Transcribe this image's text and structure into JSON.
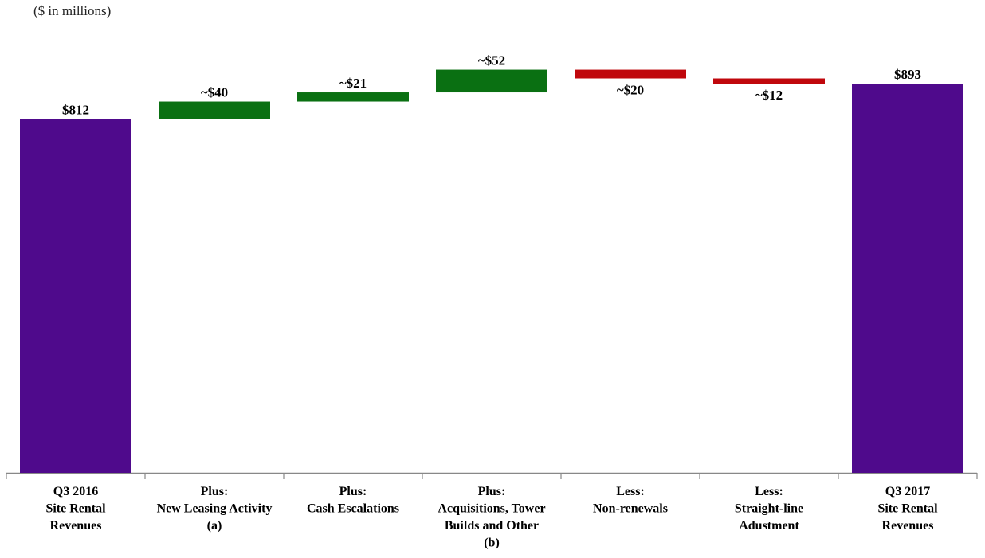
{
  "chart_data": {
    "type": "bar",
    "subtype": "waterfall",
    "units_note": "($ in millions)",
    "title": "",
    "xlabel": "",
    "ylabel": "",
    "ylim": [
      0,
      950
    ],
    "grid": false,
    "legend": "none",
    "colors": {
      "total": "#4F0A8C",
      "increase": "#0A7012",
      "decrease": "#C0070C",
      "axis": "#888888"
    },
    "categories": [
      [
        "Q3 2016",
        "Site Rental",
        "Revenues"
      ],
      [
        "Plus:",
        "New Leasing Activity",
        "(a)"
      ],
      [
        "Plus:",
        "Cash Escalations"
      ],
      [
        "Plus:",
        "Acquisitions, Tower",
        "Builds and Other",
        "(b)"
      ],
      [
        "Less:",
        "Non-renewals"
      ],
      [
        "Less:",
        "Straight-line",
        "Adustment"
      ],
      [
        "Q3 2017",
        "Site Rental",
        "Revenues"
      ]
    ],
    "steps": [
      {
        "kind": "total",
        "value": 812,
        "label": "$812"
      },
      {
        "kind": "increase",
        "value": 40,
        "label": "~$40"
      },
      {
        "kind": "increase",
        "value": 21,
        "label": "~$21"
      },
      {
        "kind": "increase",
        "value": 52,
        "label": "~$52"
      },
      {
        "kind": "decrease",
        "value": 20,
        "label": "~$20"
      },
      {
        "kind": "decrease",
        "value": 12,
        "label": "~$12"
      },
      {
        "kind": "total",
        "value": 893,
        "label": "$893"
      }
    ]
  }
}
